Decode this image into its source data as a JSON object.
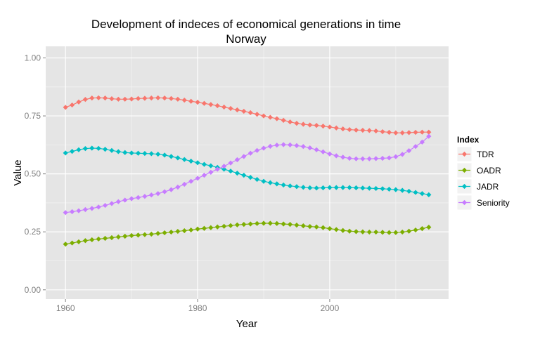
{
  "chart_data": {
    "type": "line",
    "title": "Development of indeces of economical generations in time",
    "subtitle": "Norway",
    "xlabel": "Year",
    "ylabel": "Value",
    "xlim": [
      1957,
      2018
    ],
    "ylim": [
      -0.04,
      1.05
    ],
    "x_ticks": [
      1960,
      1980,
      2000
    ],
    "x_tick_labels": [
      "1960",
      "1980",
      "2000"
    ],
    "y_ticks": [
      0,
      0.25,
      0.5,
      0.75,
      1
    ],
    "y_tick_labels": [
      "0.00",
      "0.25",
      "0.50",
      "0.75",
      "1.00"
    ],
    "grid": true,
    "legend_title": "Index",
    "legend_position": "right",
    "x_start": 1960,
    "x_end": 2015,
    "series": [
      {
        "name": "TDR",
        "color": "#F8766D",
        "values": [
          0.787,
          0.797,
          0.81,
          0.821,
          0.827,
          0.828,
          0.827,
          0.824,
          0.822,
          0.822,
          0.823,
          0.825,
          0.826,
          0.827,
          0.828,
          0.827,
          0.825,
          0.822,
          0.818,
          0.813,
          0.809,
          0.804,
          0.799,
          0.794,
          0.788,
          0.782,
          0.776,
          0.77,
          0.764,
          0.757,
          0.75,
          0.744,
          0.738,
          0.731,
          0.724,
          0.718,
          0.714,
          0.711,
          0.709,
          0.706,
          0.702,
          0.698,
          0.694,
          0.691,
          0.689,
          0.688,
          0.687,
          0.685,
          0.682,
          0.679,
          0.677,
          0.677,
          0.678,
          0.679,
          0.68,
          0.68
        ]
      },
      {
        "name": "OADR",
        "color": "#7CAE00",
        "values": [
          0.197,
          0.202,
          0.207,
          0.212,
          0.216,
          0.219,
          0.222,
          0.225,
          0.228,
          0.231,
          0.234,
          0.236,
          0.238,
          0.24,
          0.243,
          0.246,
          0.249,
          0.252,
          0.255,
          0.258,
          0.262,
          0.265,
          0.268,
          0.271,
          0.274,
          0.277,
          0.28,
          0.282,
          0.284,
          0.286,
          0.287,
          0.287,
          0.286,
          0.284,
          0.282,
          0.279,
          0.276,
          0.273,
          0.271,
          0.268,
          0.264,
          0.26,
          0.256,
          0.253,
          0.251,
          0.25,
          0.249,
          0.249,
          0.248,
          0.247,
          0.247,
          0.249,
          0.253,
          0.258,
          0.264,
          0.27
        ]
      },
      {
        "name": "JADR",
        "color": "#00BFC4",
        "values": [
          0.59,
          0.597,
          0.604,
          0.609,
          0.611,
          0.61,
          0.606,
          0.601,
          0.596,
          0.592,
          0.59,
          0.589,
          0.588,
          0.587,
          0.585,
          0.581,
          0.575,
          0.569,
          0.562,
          0.555,
          0.548,
          0.541,
          0.535,
          0.528,
          0.52,
          0.512,
          0.503,
          0.494,
          0.485,
          0.476,
          0.468,
          0.462,
          0.457,
          0.452,
          0.448,
          0.445,
          0.442,
          0.44,
          0.439,
          0.44,
          0.441,
          0.441,
          0.441,
          0.441,
          0.44,
          0.439,
          0.438,
          0.437,
          0.436,
          0.434,
          0.432,
          0.429,
          0.425,
          0.42,
          0.415,
          0.41
        ]
      },
      {
        "name": "Seniority",
        "color": "#C77CFF",
        "values": [
          0.333,
          0.337,
          0.341,
          0.346,
          0.351,
          0.357,
          0.364,
          0.372,
          0.38,
          0.387,
          0.393,
          0.398,
          0.403,
          0.409,
          0.415,
          0.423,
          0.432,
          0.443,
          0.455,
          0.468,
          0.481,
          0.494,
          0.507,
          0.52,
          0.533,
          0.547,
          0.561,
          0.575,
          0.589,
          0.601,
          0.611,
          0.619,
          0.624,
          0.626,
          0.625,
          0.622,
          0.618,
          0.612,
          0.604,
          0.595,
          0.586,
          0.578,
          0.572,
          0.567,
          0.565,
          0.565,
          0.565,
          0.566,
          0.567,
          0.569,
          0.574,
          0.584,
          0.6,
          0.618,
          0.637,
          0.662
        ]
      }
    ]
  }
}
